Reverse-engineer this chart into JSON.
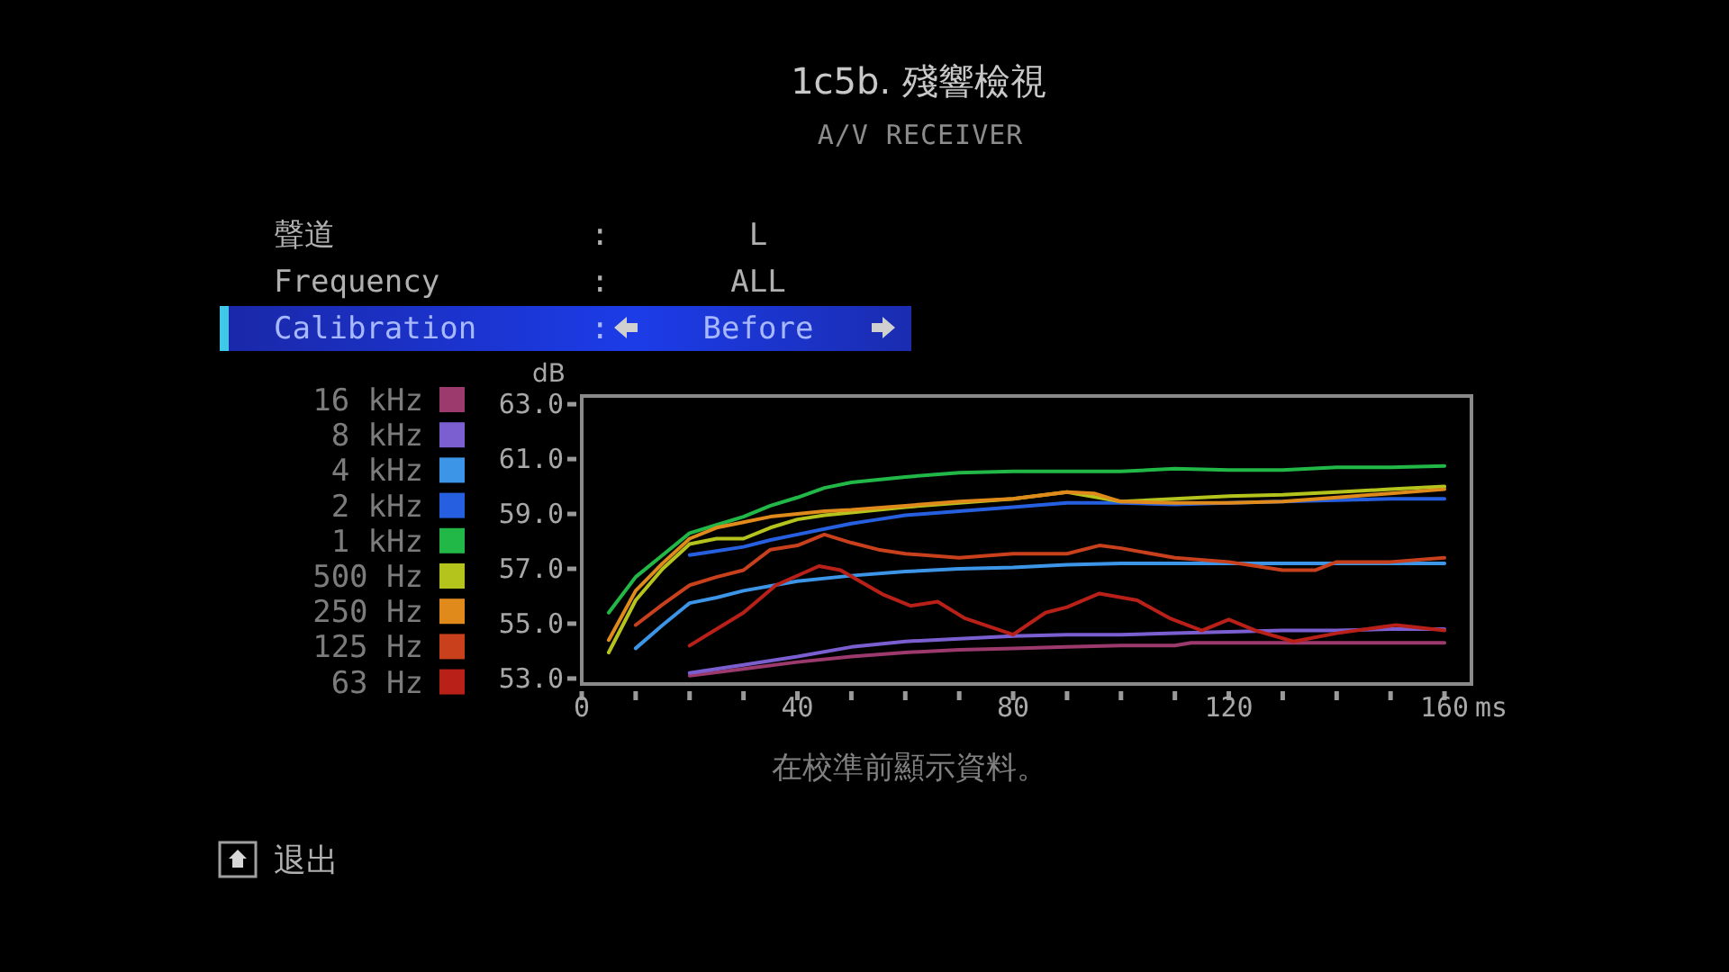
{
  "chart_data": {
    "type": "line",
    "title": "1c5b. 殘響檢視",
    "subtitle": "A/V RECEIVER",
    "xlabel": "ms",
    "ylabel": "dB",
    "annotations": [
      "聲道",
      ":",
      "L",
      "Frequency",
      ":",
      "ALL",
      "Calibration",
      ":",
      "Before",
      "在校準前顯示資料。",
      "退出"
    ],
    "xlim": [
      0,
      165
    ],
    "ylim": [
      52.8,
      63.3
    ],
    "xticks": [
      0,
      {
        "value": 10,
        "label": null
      },
      {
        "value": 20,
        "label": null
      },
      {
        "value": 30,
        "label": null
      },
      40,
      {
        "value": 50,
        "label": null
      },
      {
        "value": 60,
        "label": null
      },
      {
        "value": 70,
        "label": null
      },
      80,
      {
        "value": 90,
        "label": null
      },
      {
        "value": 100,
        "label": null
      },
      {
        "value": 110,
        "label": null
      },
      120,
      {
        "value": 130,
        "label": null
      },
      {
        "value": 140,
        "label": null
      },
      {
        "value": 150,
        "label": null
      },
      160
    ],
    "yticks": [
      {
        "value": 53,
        "label": "53.0"
      },
      {
        "value": 55,
        "label": "55.0"
      },
      {
        "value": 57,
        "label": "57.0"
      },
      {
        "value": 59,
        "label": "59.0"
      },
      {
        "value": 61,
        "label": "61.0"
      },
      {
        "value": 63,
        "label": "63.0"
      }
    ],
    "legend": "left",
    "series": [
      {
        "name": "16 kHz",
        "color": "#9c3a6e",
        "x": [
          20,
          30,
          40,
          50,
          60,
          70,
          80,
          90,
          100,
          110,
          113,
          120,
          140,
          160
        ],
        "values": [
          53.1,
          53.35,
          53.6,
          53.8,
          53.95,
          54.05,
          54.1,
          54.15,
          54.2,
          54.2,
          54.3,
          54.3,
          54.3,
          54.3
        ]
      },
      {
        "name": "8 kHz",
        "color": "#7b5fd0",
        "x": [
          20,
          30,
          40,
          50,
          60,
          70,
          80,
          90,
          100,
          110,
          120,
          130,
          140,
          150,
          160
        ],
        "values": [
          53.2,
          53.5,
          53.8,
          54.15,
          54.35,
          54.45,
          54.55,
          54.6,
          54.6,
          54.65,
          54.7,
          54.75,
          54.75,
          54.8,
          54.8
        ]
      },
      {
        "name": "4 kHz",
        "color": "#3d95e8",
        "x": [
          10,
          15,
          20,
          25,
          30,
          40,
          50,
          60,
          70,
          80,
          90,
          100,
          110,
          120,
          130,
          140,
          150,
          160
        ],
        "values": [
          54.1,
          54.95,
          55.75,
          55.95,
          56.2,
          56.55,
          56.75,
          56.9,
          57.0,
          57.05,
          57.15,
          57.2,
          57.2,
          57.2,
          57.2,
          57.2,
          57.2,
          57.2
        ]
      },
      {
        "name": "2 kHz",
        "color": "#2660e0",
        "x": [
          20,
          25,
          30,
          35,
          40,
          45,
          50,
          55,
          60,
          70,
          80,
          90,
          100,
          110,
          120,
          130,
          140,
          150,
          160
        ],
        "values": [
          57.5,
          57.65,
          57.8,
          58.05,
          58.25,
          58.45,
          58.65,
          58.8,
          58.95,
          59.1,
          59.25,
          59.4,
          59.4,
          59.35,
          59.4,
          59.45,
          59.5,
          59.55,
          59.55
        ]
      },
      {
        "name": "1 kHz",
        "color": "#22b848",
        "x": [
          5,
          10,
          15,
          20,
          25,
          30,
          35,
          40,
          45,
          50,
          55,
          60,
          70,
          80,
          90,
          100,
          110,
          120,
          130,
          140,
          150,
          160
        ],
        "values": [
          55.4,
          56.7,
          57.5,
          58.3,
          58.6,
          58.9,
          59.3,
          59.6,
          59.95,
          60.15,
          60.25,
          60.35,
          60.5,
          60.55,
          60.55,
          60.55,
          60.65,
          60.6,
          60.6,
          60.7,
          60.7,
          60.75
        ]
      },
      {
        "name": "500 Hz",
        "color": "#b4c41c",
        "x": [
          5,
          10,
          15,
          20,
          25,
          30,
          35,
          40,
          45,
          50,
          60,
          70,
          80,
          90,
          100,
          110,
          120,
          130,
          140,
          150,
          160
        ],
        "values": [
          53.95,
          55.85,
          57.0,
          57.9,
          58.1,
          58.1,
          58.5,
          58.8,
          58.95,
          59.05,
          59.25,
          59.4,
          59.55,
          59.8,
          59.45,
          59.55,
          59.65,
          59.7,
          59.8,
          59.9,
          60.0
        ]
      },
      {
        "name": "250 Hz",
        "color": "#e08a1c",
        "x": [
          5,
          10,
          15,
          20,
          25,
          30,
          35,
          40,
          45,
          50,
          60,
          70,
          80,
          90,
          95,
          100,
          110,
          120,
          130,
          140,
          150,
          160
        ],
        "values": [
          54.4,
          56.2,
          57.2,
          58.1,
          58.5,
          58.7,
          58.9,
          59.0,
          59.1,
          59.15,
          59.3,
          59.45,
          59.55,
          59.8,
          59.75,
          59.45,
          59.4,
          59.4,
          59.45,
          59.6,
          59.75,
          59.9
        ]
      },
      {
        "name": "125 Hz",
        "color": "#c8401c",
        "x": [
          10,
          15,
          20,
          25,
          30,
          35,
          40,
          45,
          50,
          55,
          60,
          70,
          80,
          90,
          96,
          100,
          110,
          120,
          130,
          136,
          140,
          150,
          160
        ],
        "values": [
          54.95,
          55.7,
          56.4,
          56.7,
          56.95,
          57.7,
          57.85,
          58.25,
          57.95,
          57.7,
          57.55,
          57.4,
          57.55,
          57.55,
          57.85,
          57.75,
          57.4,
          57.25,
          56.95,
          56.95,
          57.25,
          57.25,
          57.4
        ]
      },
      {
        "name": "63 Hz",
        "color": "#b82018",
        "x": [
          20,
          25,
          30,
          36,
          44,
          48,
          52,
          56,
          61,
          66,
          71,
          80,
          86,
          90,
          96,
          103,
          109,
          115,
          120,
          125,
          132,
          140,
          151,
          160
        ],
        "values": [
          54.2,
          54.8,
          55.4,
          56.4,
          57.1,
          56.95,
          56.5,
          56.05,
          55.65,
          55.8,
          55.2,
          54.6,
          55.4,
          55.6,
          56.1,
          55.85,
          55.2,
          54.75,
          55.15,
          54.75,
          54.35,
          54.65,
          54.95,
          54.75
        ]
      }
    ]
  }
}
